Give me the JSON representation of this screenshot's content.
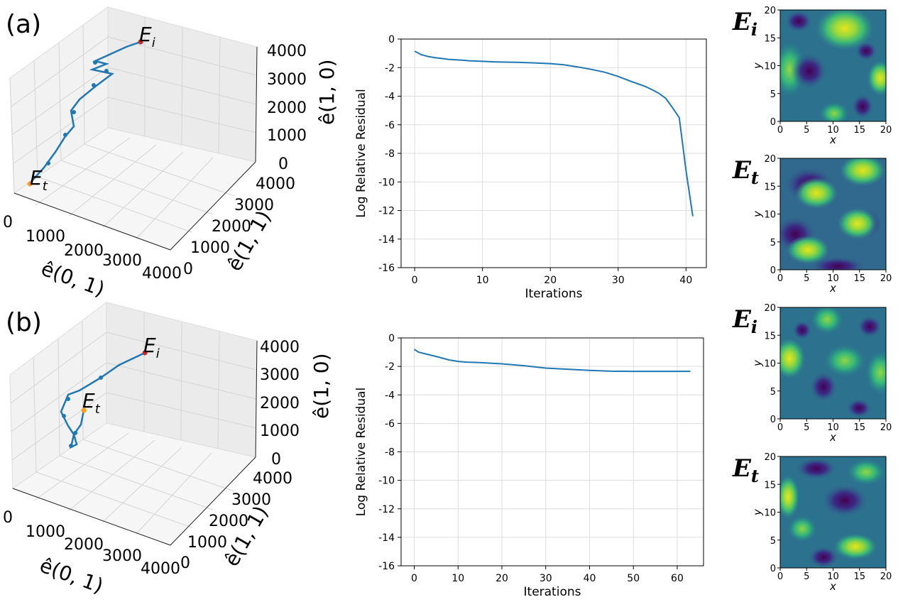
{
  "colors": {
    "line": "#1f77b4",
    "grid": "#d9d9d9",
    "pane": "#f2f2f2",
    "start_marker": "#d62728",
    "end_marker": "#ff9f0e"
  },
  "panel_labels": [
    "(a)",
    "(b)"
  ],
  "panels3d": [
    {
      "start_label": "E",
      "start_sub": "i",
      "end_label": "E",
      "end_sub": "t",
      "z_ticks": [
        "4000",
        "3000",
        "2000",
        "1000",
        "0"
      ],
      "y_ticks": [
        "4000",
        "3000",
        "2000",
        "1000",
        "0"
      ],
      "x_ticks": [
        "0",
        "1000",
        "2000",
        "3000",
        "4000"
      ],
      "x_axis_label": "ê(0, 1)",
      "y_axis_label": "ê(1, 1)",
      "z_axis_label": "ê(1, 0)"
    },
    {
      "start_label": "E",
      "start_sub": "i",
      "end_label": "E",
      "end_sub": "t",
      "z_ticks": [
        "4000",
        "3000",
        "2000",
        "1000",
        "0"
      ],
      "y_ticks": [
        "4000",
        "3000",
        "2000",
        "1000",
        "0"
      ],
      "x_ticks": [
        "0",
        "1000",
        "2000",
        "3000",
        "4000"
      ],
      "x_axis_label": "ê(0, 1)",
      "y_axis_label": "ê(1, 1)",
      "z_axis_label": "ê(1, 0)"
    }
  ],
  "chart_data": [
    {
      "type": "line",
      "title": "",
      "xlabel": "Iterations",
      "ylabel": "Log Relative Residual",
      "xlim": [
        -2,
        43
      ],
      "ylim": [
        -16,
        0
      ],
      "xticks": [
        0,
        10,
        20,
        30,
        40
      ],
      "yticks": [
        0,
        -2,
        -4,
        -6,
        -8,
        -10,
        -12,
        -14,
        -16
      ],
      "series": [
        {
          "name": "residual",
          "x": [
            0,
            1,
            2,
            3,
            4,
            5,
            6,
            7,
            8,
            10,
            12,
            15,
            18,
            20,
            22,
            24,
            26,
            28,
            30,
            32,
            34,
            35,
            36,
            37,
            38,
            39,
            40,
            41
          ],
          "y": [
            -0.85,
            -1.1,
            -1.22,
            -1.3,
            -1.36,
            -1.42,
            -1.45,
            -1.48,
            -1.52,
            -1.56,
            -1.6,
            -1.63,
            -1.68,
            -1.72,
            -1.8,
            -1.95,
            -2.12,
            -2.32,
            -2.62,
            -2.98,
            -3.32,
            -3.55,
            -3.8,
            -4.15,
            -4.8,
            -5.5,
            -9.2,
            -12.4
          ]
        }
      ]
    },
    {
      "type": "line",
      "title": "",
      "xlabel": "Iterations",
      "ylabel": "Log Relative Residual",
      "xlim": [
        -3,
        66
      ],
      "ylim": [
        -16,
        0
      ],
      "xticks": [
        0,
        10,
        20,
        30,
        40,
        50,
        60
      ],
      "yticks": [
        0,
        -2,
        -4,
        -6,
        -8,
        -10,
        -12,
        -14,
        -16
      ],
      "series": [
        {
          "name": "residual",
          "x": [
            0,
            1,
            3,
            5,
            8,
            10,
            12,
            15,
            20,
            25,
            30,
            35,
            40,
            45,
            50,
            55,
            60,
            63
          ],
          "y": [
            -0.8,
            -1.0,
            -1.15,
            -1.3,
            -1.55,
            -1.65,
            -1.7,
            -1.73,
            -1.82,
            -1.95,
            -2.12,
            -2.2,
            -2.28,
            -2.34,
            -2.35,
            -2.35,
            -2.35,
            -2.35
          ]
        }
      ]
    }
  ],
  "heatmaps": [
    {
      "label": "E",
      "sub": "i",
      "xlabel": "x",
      "ylabel": "y",
      "ticks": [
        "0",
        "5",
        "10",
        "15",
        "20"
      ]
    },
    {
      "label": "E",
      "sub": "t",
      "xlabel": "x",
      "ylabel": "y",
      "ticks": [
        "0",
        "5",
        "10",
        "15",
        "20"
      ]
    },
    {
      "label": "E",
      "sub": "i",
      "xlabel": "x",
      "ylabel": "y",
      "ticks": [
        "0",
        "5",
        "10",
        "15",
        "20"
      ]
    },
    {
      "label": "E",
      "sub": "t",
      "xlabel": "x",
      "ylabel": "y",
      "ticks": [
        "0",
        "5",
        "10",
        "15",
        "20"
      ]
    }
  ]
}
